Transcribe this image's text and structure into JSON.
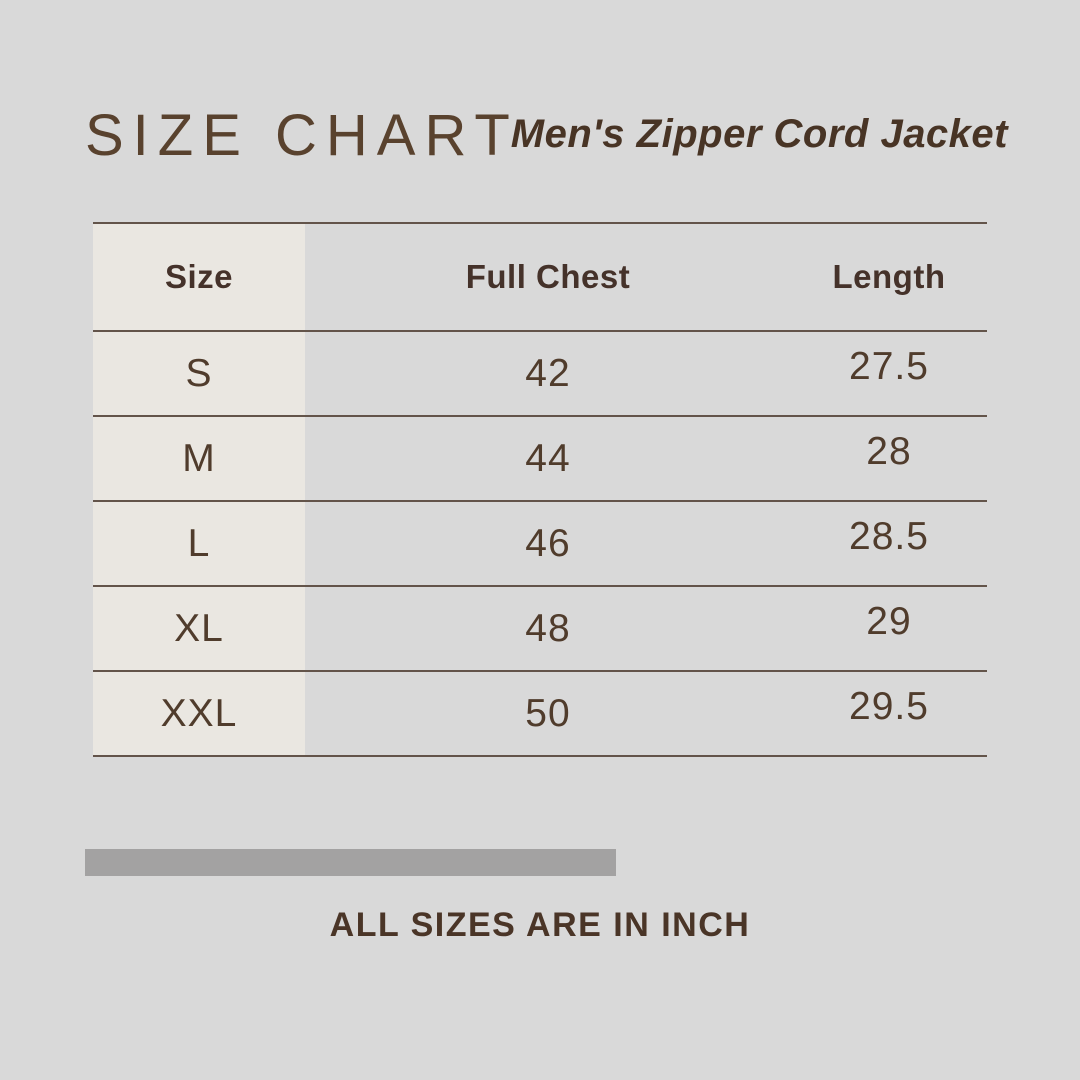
{
  "page": {
    "title": "SIZE CHART",
    "subtitle": "Men's Zipper Cord Jacket",
    "footnote": "ALL SIZES ARE IN INCH"
  },
  "colors": {
    "background": "#d9d9d9",
    "size_column_bg": "#eae7e1",
    "rule_line": "#63544a",
    "text_brown": "#4a3527",
    "divider_bar": "#a3a2a2"
  },
  "chart_data": {
    "type": "table",
    "title": "SIZE CHART",
    "subtitle": "Men's Zipper Cord Jacket",
    "unit_note": "ALL SIZES ARE IN INCH",
    "columns": [
      "Size",
      "Full Chest",
      "Length"
    ],
    "rows": [
      [
        "S",
        "42",
        "27.5"
      ],
      [
        "M",
        "44",
        "28"
      ],
      [
        "L",
        "46",
        "28.5"
      ],
      [
        "XL",
        "48",
        "29"
      ],
      [
        "XXL",
        "50",
        "29.5"
      ]
    ]
  }
}
